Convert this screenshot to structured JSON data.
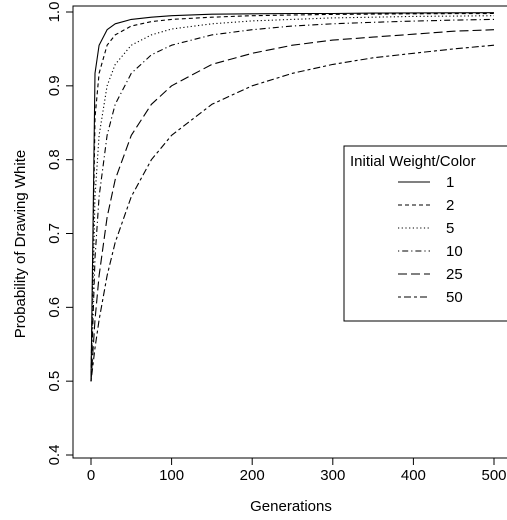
{
  "chart_data": {
    "type": "line",
    "title": "",
    "xlabel": "Generations",
    "ylabel": "Probability of Drawing White",
    "xlim": [
      0,
      500
    ],
    "ylim": [
      0.4,
      1.0
    ],
    "x_ticks": [
      0,
      100,
      200,
      300,
      400,
      500
    ],
    "x_tick_labels": [
      "0",
      "100",
      "200",
      "300",
      "400",
      "500"
    ],
    "y_ticks": [
      0.4,
      0.5,
      0.6,
      0.7,
      0.8,
      0.9,
      1.0
    ],
    "y_tick_labels": [
      "0.4",
      "0.5",
      "0.6",
      "0.7",
      "0.8",
      "0.9",
      "1.0"
    ],
    "grid": false,
    "legend": {
      "title": "Initial Weight/Color",
      "position": "right"
    },
    "x": [
      0,
      5,
      10,
      20,
      30,
      50,
      75,
      100,
      150,
      200,
      250,
      300,
      350,
      400,
      450,
      500
    ],
    "series": [
      {
        "name": "1",
        "dash": "solid",
        "values": [
          0.5,
          0.917,
          0.955,
          0.976,
          0.984,
          0.99,
          0.993,
          0.995,
          0.997,
          0.9975,
          0.998,
          0.998,
          0.9985,
          0.9988,
          0.9989,
          0.999
        ]
      },
      {
        "name": "2",
        "dash": "dashed",
        "values": [
          0.5,
          0.857,
          0.917,
          0.955,
          0.969,
          0.981,
          0.987,
          0.99,
          0.993,
          0.995,
          0.996,
          0.9967,
          0.9972,
          0.9975,
          0.9978,
          0.998
        ]
      },
      {
        "name": "5",
        "dash": "dotted",
        "values": [
          0.5,
          0.75,
          0.833,
          0.9,
          0.929,
          0.955,
          0.969,
          0.977,
          0.984,
          0.988,
          0.99,
          0.992,
          0.993,
          0.994,
          0.9945,
          0.995
        ]
      },
      {
        "name": "10",
        "dash": "dotdash",
        "values": [
          0.5,
          0.667,
          0.75,
          0.833,
          0.875,
          0.917,
          0.942,
          0.955,
          0.969,
          0.976,
          0.981,
          0.984,
          0.986,
          0.9877,
          0.989,
          0.99
        ]
      },
      {
        "name": "25",
        "dash": "longdash",
        "values": [
          0.5,
          0.583,
          0.643,
          0.722,
          0.773,
          0.833,
          0.875,
          0.9,
          0.929,
          0.944,
          0.955,
          0.962,
          0.966,
          0.97,
          0.974,
          0.976
        ]
      },
      {
        "name": "50",
        "dash": "twodash",
        "values": [
          0.5,
          0.545,
          0.583,
          0.643,
          0.688,
          0.75,
          0.8,
          0.833,
          0.875,
          0.9,
          0.917,
          0.929,
          0.938,
          0.944,
          0.95,
          0.955
        ]
      }
    ]
  }
}
